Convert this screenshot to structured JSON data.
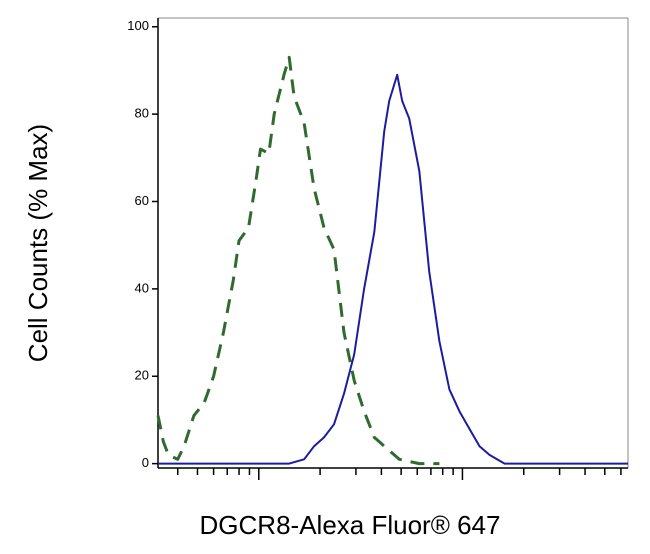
{
  "chart_data": {
    "type": "line",
    "xlabel": "DGCR8-Alexa Fluor® 647",
    "ylabel": "Cell Counts (% Max)",
    "xscale": "log",
    "xlim": [
      32,
      6500
    ],
    "xticks": [
      40,
      50,
      60,
      70,
      80,
      90,
      100,
      200,
      300,
      400,
      500,
      600,
      700,
      800,
      900,
      1000,
      2000,
      3000,
      4000,
      5000,
      6000
    ],
    "ylim": [
      -1,
      102
    ],
    "yticks": [
      0,
      20,
      40,
      60,
      80,
      100
    ],
    "series": [
      {
        "color": "#2f6a2f",
        "line_style": "dashed",
        "x": [
          32,
          34,
          36,
          40,
          43,
          48,
          54,
          60,
          67,
          75,
          80,
          89,
          97,
          102,
          112,
          119,
          133,
          141,
          149,
          167,
          187,
          209,
          234,
          262,
          294,
          329,
          369,
          437,
          490,
          614,
          771
        ],
        "values": [
          11,
          5,
          2,
          1,
          4,
          11,
          14,
          20,
          30,
          42,
          51,
          54,
          65,
          72,
          71,
          80,
          89,
          93,
          84,
          78,
          63,
          54,
          49,
          30,
          19,
          12,
          6,
          3,
          1,
          0,
          0
        ]
      },
      {
        "color": "#1c1ca0",
        "line_style": "solid",
        "x": [
          32,
          51,
          71,
          89,
          112,
          141,
          167,
          187,
          209,
          234,
          262,
          294,
          329,
          369,
          413,
          437,
          478,
          506,
          548,
          614,
          687,
          771,
          863,
          966,
          1082,
          1213,
          1358,
          1611,
          2395,
          4729,
          6500
        ],
        "values": [
          0,
          0,
          0,
          0,
          0,
          0,
          1,
          4,
          6,
          9,
          16,
          25,
          40,
          53,
          76,
          83,
          89,
          83,
          79,
          67,
          44,
          28,
          17,
          12,
          8,
          4,
          2,
          0,
          0,
          0,
          0
        ]
      }
    ]
  }
}
